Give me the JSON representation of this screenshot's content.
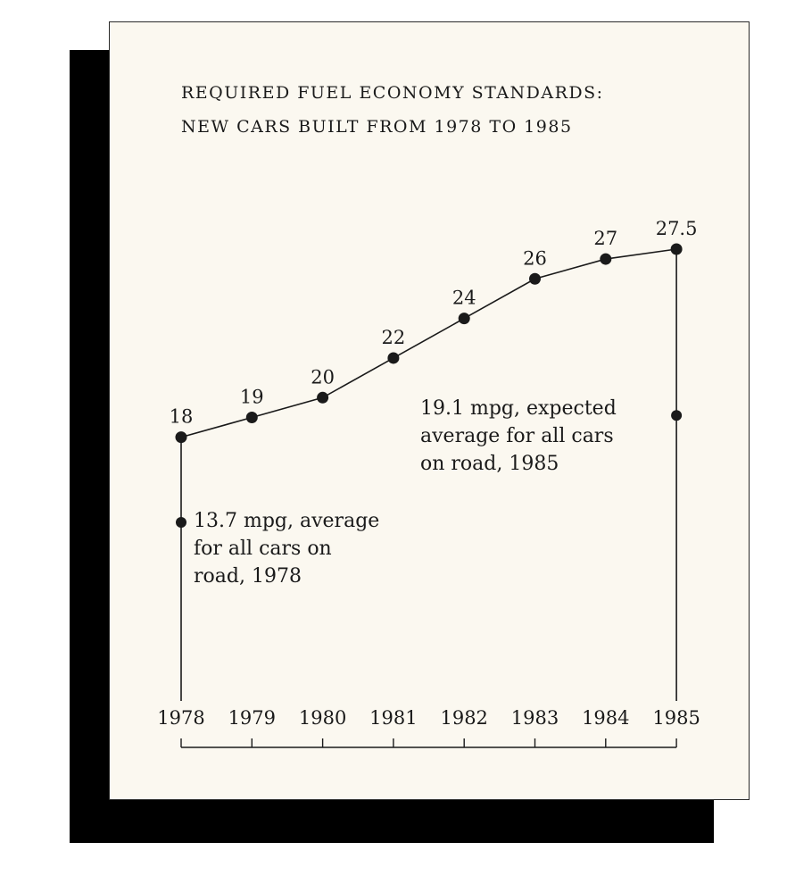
{
  "chart_data": {
    "type": "line",
    "title": "REQUIRED FUEL ECONOMY STANDARDS:",
    "subtitle": "NEW CARS BUILT FROM 1978 TO 1985",
    "xlabel": "",
    "ylabel": "",
    "x": [
      "1978",
      "1979",
      "1980",
      "1981",
      "1982",
      "1983",
      "1984",
      "1985"
    ],
    "values": [
      18,
      19,
      20,
      22,
      24,
      26,
      27,
      27.5
    ],
    "value_labels": [
      "18",
      "19",
      "20",
      "22",
      "24",
      "26",
      "27",
      "27.5"
    ],
    "grid": false,
    "ylim": [
      13.7,
      27.5
    ],
    "markers": [
      {
        "x": "1978",
        "value": 13.7,
        "lines": [
          "13.7 mpg, average",
          "for all cars on",
          "road, 1978"
        ]
      },
      {
        "x": "1985",
        "value": 19.1,
        "lines": [
          "19.1 mpg, expected",
          "average for all cars",
          "on road, 1985"
        ]
      }
    ],
    "colors": {
      "line": "#1a1a1a",
      "background": "#fbf8f0",
      "shadow": "#000000"
    }
  }
}
